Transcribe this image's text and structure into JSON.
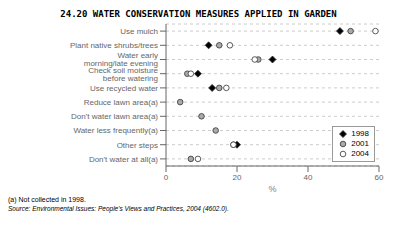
{
  "chart_data": {
    "type": "scatter",
    "title": "24.20   WATER CONSERVATION MEASURES APPLIED IN GARDEN",
    "categories": [
      "Use mulch",
      "Plant native shrubs/trees",
      "Water early morning/late evening",
      "Check soil moisture before watering",
      "Use recycled water",
      "Reduce lawn area(a)",
      "Don't water lawn area(a)",
      "Water less frequently(a)",
      "Other steps",
      "Don't water at all(a)"
    ],
    "series": [
      {
        "name": "1998",
        "color": "#000000",
        "marker": "diamond",
        "values": [
          49,
          12,
          30,
          9,
          13,
          null,
          null,
          null,
          20,
          null
        ]
      },
      {
        "name": "2001",
        "color": "#aaaaaa",
        "marker": "circle",
        "values": [
          52,
          15,
          26,
          6,
          15,
          4,
          10,
          14,
          19,
          7
        ]
      },
      {
        "name": "2004",
        "color": "#ffffff",
        "marker": "circle",
        "values": [
          59,
          18,
          25,
          7,
          17,
          null,
          null,
          null,
          19,
          9
        ]
      }
    ],
    "xlabel": "%",
    "xlim": [
      0,
      60
    ],
    "xticks": [
      0,
      20,
      40,
      60
    ],
    "grid": true,
    "legend": "lower right",
    "annotations": [
      "(a) Not collected in 1998.",
      "Source: Environmental Issues: People's Views and Practices, 2004 (4602.0)."
    ]
  }
}
